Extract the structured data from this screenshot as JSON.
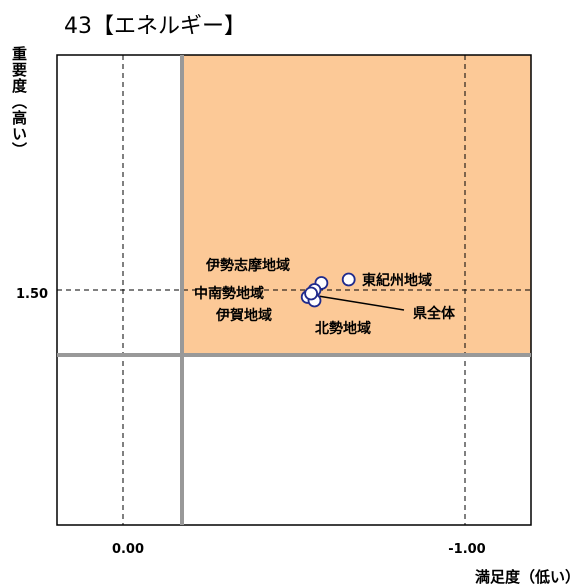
{
  "chart_data": {
    "type": "scatter",
    "title": "43【エネルギー】",
    "xlabel": "満足度（低い）",
    "ylabel": "重要度（高い）",
    "x_reversed": true,
    "reference_lines": {
      "x": [
        0.0,
        -1.0
      ],
      "y": [
        1.5
      ]
    },
    "highlight_quadrant": "top-right",
    "highlight_color": "#fcc997",
    "x_ticks": [
      {
        "value": 0.0,
        "label": "0.00"
      },
      {
        "value": -1.0,
        "label": "-1.00"
      }
    ],
    "y_ticks": [
      {
        "value": 1.5,
        "label": "1.50"
      }
    ],
    "points": [
      {
        "name": "東紀州地域",
        "x": -0.66,
        "y": 1.53
      },
      {
        "name": "伊勢志摩地域",
        "x": -0.58,
        "y": 1.52
      },
      {
        "name": "中南勢地域",
        "x": -0.56,
        "y": 1.5
      },
      {
        "name": "伊賀地域",
        "x": -0.54,
        "y": 1.48
      },
      {
        "name": "北勢地域",
        "x": -0.56,
        "y": 1.47
      },
      {
        "name": "県全体",
        "x": -0.55,
        "y": 1.49
      }
    ]
  }
}
